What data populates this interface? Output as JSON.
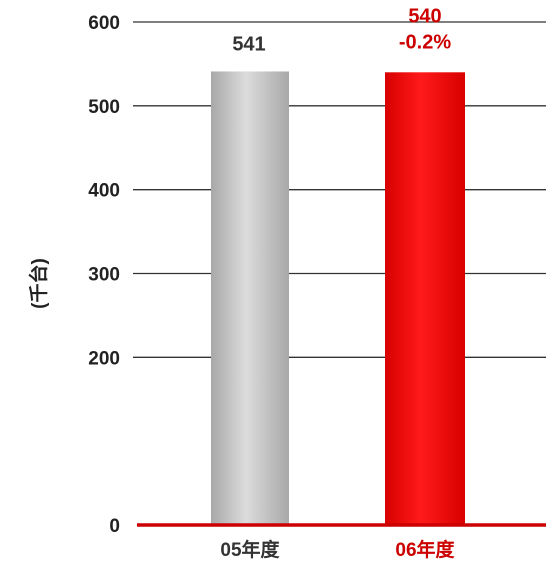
{
  "chart_data": {
    "type": "bar",
    "categories": [
      "05年度",
      "06年度"
    ],
    "values": [
      541,
      540
    ],
    "data_labels": [
      "541",
      "540"
    ],
    "change_labels": [
      "",
      "-0.2%"
    ],
    "ylabel": "(千台)",
    "ylim": [
      0,
      600
    ],
    "yticks": [
      0,
      200,
      300,
      400,
      500,
      600
    ],
    "grid": true,
    "colors": {
      "bar_2005": "#c4c4c4",
      "bar_2006": "#ff0000",
      "label_2005": "#333333",
      "label_2006": "#cc0000",
      "baseline": "#cc0000",
      "gridline": "#333333"
    }
  }
}
